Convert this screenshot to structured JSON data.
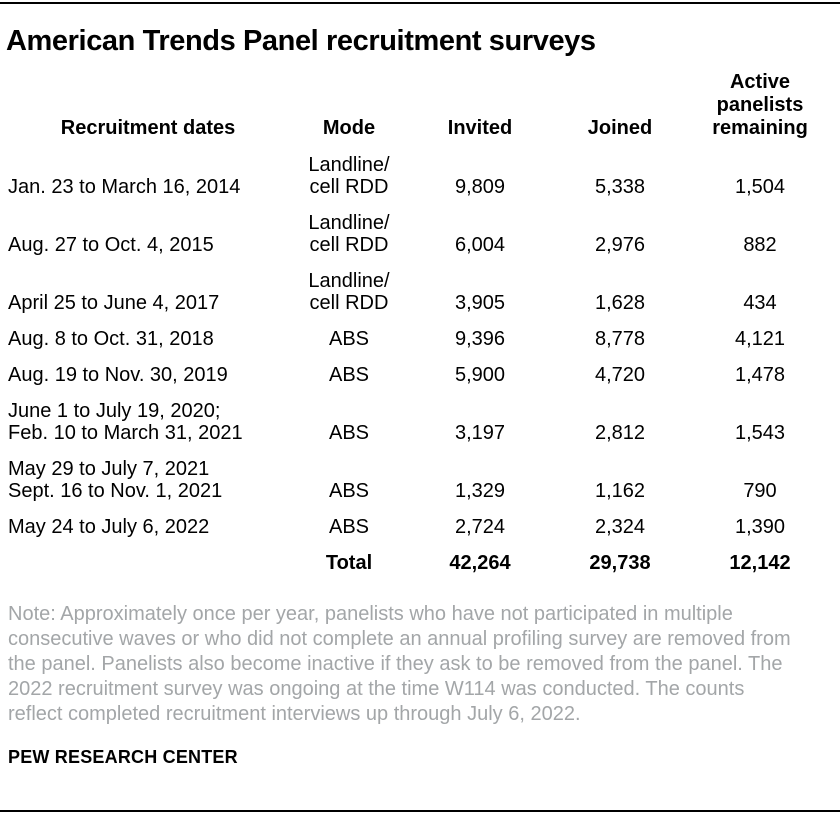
{
  "chart_data": {
    "type": "table",
    "title": "American Trends Panel recruitment surveys",
    "columns": {
      "dates": "Recruitment dates",
      "mode": "Mode",
      "invited": "Invited",
      "joined": "Joined",
      "remaining": "Active\npanelists\nremaining"
    },
    "rows": [
      {
        "dates": "Jan. 23 to March 16, 2014",
        "mode": "Landline/\ncell RDD",
        "invited": "9,809",
        "joined": "5,338",
        "remaining": "1,504"
      },
      {
        "dates": "Aug. 27 to Oct. 4, 2015",
        "mode": "Landline/\ncell RDD",
        "invited": "6,004",
        "joined": "2,976",
        "remaining": "882"
      },
      {
        "dates": "April 25 to June 4, 2017",
        "mode": "Landline/\ncell RDD",
        "invited": "3,905",
        "joined": "1,628",
        "remaining": "434"
      },
      {
        "dates": "Aug. 8 to Oct. 31, 2018",
        "mode": "ABS",
        "invited": "9,396",
        "joined": "8,778",
        "remaining": "4,121"
      },
      {
        "dates": "Aug. 19 to Nov. 30, 2019",
        "mode": "ABS",
        "invited": "5,900",
        "joined": "4,720",
        "remaining": "1,478"
      },
      {
        "dates": "June 1 to July 19, 2020;\nFeb. 10 to March 31, 2021",
        "mode": "ABS",
        "invited": "3,197",
        "joined": "2,812",
        "remaining": "1,543"
      },
      {
        "dates": "May 29 to July 7, 2021\nSept. 16 to Nov. 1, 2021",
        "mode": "ABS",
        "invited": "1,329",
        "joined": "1,162",
        "remaining": "790"
      },
      {
        "dates": "May 24 to July 6, 2022",
        "mode": "ABS",
        "invited": "2,724",
        "joined": "2,324",
        "remaining": "1,390"
      }
    ],
    "total": {
      "label": "Total",
      "invited": "42,264",
      "joined": "29,738",
      "remaining": "12,142"
    },
    "note": "Note: Approximately once per year, panelists who have not participated in multiple consecutive waves or who did not complete an annual profiling survey are removed from the panel. Panelists also become inactive if they ask to be removed from the panel. The 2022 recruitment survey was ongoing at the time W114 was conducted. The counts reflect completed recruitment interviews up through July 6, 2022.",
    "source": "PEW RESEARCH CENTER",
    "layout": {
      "grid": "off",
      "legend": "none"
    },
    "colors": {
      "background": "#ffffff",
      "title_text": "#000000",
      "body_text": "#000000",
      "note_text": "#a3a6a8",
      "rule": "#000000"
    }
  }
}
